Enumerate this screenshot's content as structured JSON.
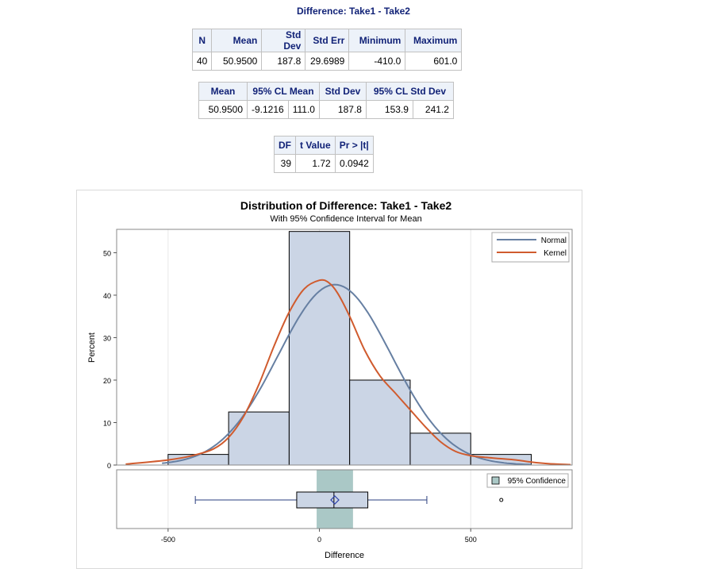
{
  "title": "Difference: Take1 - Take2",
  "stats_table": {
    "headers": [
      "N",
      "Mean",
      "Std Dev",
      "Std Err",
      "Minimum",
      "Maximum"
    ],
    "row": [
      "40",
      "50.9500",
      "187.8",
      "29.6989",
      "-410.0",
      "601.0"
    ]
  },
  "cl_table": {
    "headers": [
      "Mean",
      "95% CL Mean",
      "Std Dev",
      "95% CL Std Dev"
    ],
    "row": [
      "50.9500",
      "-9.1216",
      "111.0",
      "187.8",
      "153.9",
      "241.2"
    ]
  },
  "t_table": {
    "headers": [
      "DF",
      "t Value",
      "Pr > |t|"
    ],
    "row": [
      "39",
      "1.72",
      "0.0942"
    ]
  },
  "chart_data": {
    "type": "bar",
    "title": "Distribution of Difference: Take1 - Take2",
    "subtitle": "With 95% Confidence Interval for Mean",
    "xlabel": "Difference",
    "ylabel": "Percent",
    "xlim": [
      -670,
      835
    ],
    "ylim": [
      0,
      55.5
    ],
    "x_ticks": [
      -500,
      0,
      500
    ],
    "x_tick_labels": [
      "-500",
      "0",
      "500"
    ],
    "y_ticks": [
      0,
      10,
      20,
      30,
      40,
      50
    ],
    "y_tick_labels": [
      "0",
      "10",
      "20",
      "30",
      "40",
      "50"
    ],
    "grid": "vertical",
    "legend_position": "top-right",
    "histogram": {
      "bin_edges": [
        -500,
        -300,
        -100,
        100,
        300,
        500,
        700
      ],
      "percent": [
        2.5,
        12.5,
        55,
        20,
        7.5,
        2.5
      ]
    },
    "series": [
      {
        "name": "Normal",
        "type": "line",
        "color": "#667fa2",
        "mean": 50.95,
        "std": 187.8,
        "bin_width": 200
      },
      {
        "name": "Kernel",
        "type": "line",
        "color": "#d05b2e",
        "points": [
          [
            -640,
            0.2
          ],
          [
            -500,
            1.2
          ],
          [
            -420,
            2.2
          ],
          [
            -350,
            3.8
          ],
          [
            -300,
            6.5
          ],
          [
            -250,
            11.5
          ],
          [
            -200,
            19
          ],
          [
            -150,
            28
          ],
          [
            -100,
            36
          ],
          [
            -50,
            41.5
          ],
          [
            0,
            43.5
          ],
          [
            30,
            43
          ],
          [
            60,
            40.5
          ],
          [
            100,
            35
          ],
          [
            150,
            27
          ],
          [
            200,
            21
          ],
          [
            250,
            17
          ],
          [
            300,
            13
          ],
          [
            350,
            9
          ],
          [
            400,
            5.5
          ],
          [
            450,
            3.2
          ],
          [
            500,
            2.2
          ],
          [
            550,
            1.8
          ],
          [
            600,
            1.5
          ],
          [
            650,
            1.2
          ],
          [
            700,
            0.7
          ],
          [
            760,
            0.3
          ],
          [
            830,
            0.1
          ]
        ]
      }
    ],
    "confidence_legend": "95% Confidence",
    "confidence_interval": [
      -9.1216,
      111.0
    ],
    "confidence_color": "#aac8c6",
    "boxplot": {
      "mean": 50.95,
      "median": 48,
      "q1": -75,
      "q3": 160,
      "whisker_low": -410,
      "whisker_high": 355,
      "outliers": [
        601
      ]
    },
    "bar_fill": "#cbd5e5",
    "bar_edge": "#000000"
  }
}
